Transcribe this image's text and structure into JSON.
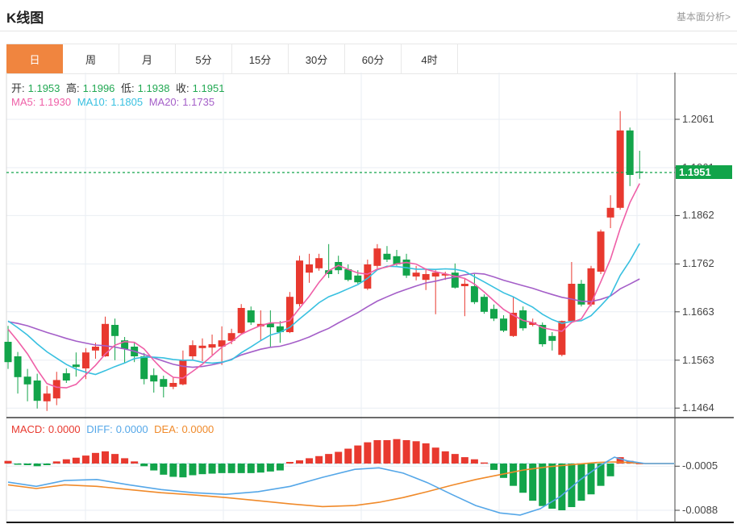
{
  "header": {
    "title": "K线图",
    "fundamental_link": "基本面分析>"
  },
  "tabs": {
    "items": [
      {
        "label": "日",
        "active": true
      },
      {
        "label": "周",
        "active": false
      },
      {
        "label": "月",
        "active": false
      },
      {
        "label": "5分",
        "active": false
      },
      {
        "label": "15分",
        "active": false
      },
      {
        "label": "30分",
        "active": false
      },
      {
        "label": "60分",
        "active": false
      },
      {
        "label": "4时",
        "active": false
      }
    ]
  },
  "legend": {
    "open_label": "开:",
    "open": "1.1953",
    "high_label": "高:",
    "high": "1.1996",
    "low_label": "低:",
    "low": "1.1938",
    "close_label": "收:",
    "close": "1.1951",
    "ma5_label": "MA5:",
    "ma5": "1.1930",
    "ma10_label": "MA10:",
    "ma10": "1.1805",
    "ma20_label": "MA20:",
    "ma20": "1.1735"
  },
  "macd_legend": {
    "macd_label": "MACD:",
    "macd": "0.0000",
    "diff_label": "DIFF:",
    "diff": "0.0000",
    "dea_label": "DEA:",
    "dea": "0.0000"
  },
  "price_tag": "1.1951",
  "colors": {
    "up": "#e8392f",
    "down": "#12a44a",
    "tab_active": "#f0853f",
    "ma5": "#ef5fa7",
    "ma10": "#38c0e0",
    "ma20": "#a45ec8",
    "diff_line": "#55a7e8",
    "dea_line": "#f08a2a",
    "grid": "#e9eef3",
    "price_line": "#12a44a",
    "zero_dash": "#9fd4ea"
  },
  "chart_data": {
    "type": "candlestick",
    "title": "K线图 (daily)",
    "period_selected": "日",
    "current_price": 1.1951,
    "ohlc_last": {
      "open": 1.1953,
      "high": 1.1996,
      "low": 1.1938,
      "close": 1.1951
    },
    "ma_last": {
      "ma5": 1.193,
      "ma10": 1.1805,
      "ma20": 1.1735
    },
    "y_ticks": [
      {
        "value": 1.2061,
        "label": "1.2061"
      },
      {
        "value": 1.1961,
        "label": "1.1961"
      },
      {
        "value": 1.1862,
        "label": "1.1862"
      },
      {
        "value": 1.1762,
        "label": "1.1762"
      },
      {
        "value": 1.1663,
        "label": "1.1663"
      },
      {
        "value": 1.1563,
        "label": "1.1563"
      },
      {
        "value": 1.1464,
        "label": "1.1464"
      }
    ],
    "macd_ticks": [
      {
        "value": -0.0005,
        "label": "-0.0005"
      },
      {
        "value": -0.0088,
        "label": "-0.0088"
      }
    ],
    "x_gridlines": [
      106,
      277,
      448,
      619,
      790
    ],
    "candles": [
      [
        1.1601,
        1.1634,
        1.1545,
        1.1559
      ],
      [
        1.1571,
        1.158,
        1.1494,
        1.1528
      ],
      [
        1.1529,
        1.1545,
        1.1478,
        1.1513
      ],
      [
        1.1521,
        1.1535,
        1.1463,
        1.1479
      ],
      [
        1.1478,
        1.151,
        1.1458,
        1.1494
      ],
      [
        1.1484,
        1.1539,
        1.147,
        1.1522
      ],
      [
        1.1536,
        1.1546,
        1.1516,
        1.1521
      ],
      [
        1.1554,
        1.1579,
        1.1529,
        1.1549
      ],
      [
        1.1546,
        1.1588,
        1.1524,
        1.1579
      ],
      [
        1.1583,
        1.1599,
        1.1566,
        1.1591
      ],
      [
        1.1571,
        1.1653,
        1.157,
        1.1638
      ],
      [
        1.1636,
        1.1649,
        1.1563,
        1.1613
      ],
      [
        1.1604,
        1.1611,
        1.1558,
        1.1586
      ],
      [
        1.1591,
        1.1601,
        1.1559,
        1.1571
      ],
      [
        1.1571,
        1.1578,
        1.1513,
        1.1524
      ],
      [
        1.1532,
        1.1546,
        1.1496,
        1.1519
      ],
      [
        1.1524,
        1.1531,
        1.1486,
        1.1508
      ],
      [
        1.1508,
        1.1528,
        1.1503,
        1.1516
      ],
      [
        1.1513,
        1.1583,
        1.1511,
        1.1563
      ],
      [
        1.1571,
        1.1604,
        1.1563,
        1.1594
      ],
      [
        1.1588,
        1.1608,
        1.1561,
        1.1593
      ],
      [
        1.1589,
        1.1616,
        1.1574,
        1.1596
      ],
      [
        1.1591,
        1.1633,
        1.1553,
        1.1604
      ],
      [
        1.1603,
        1.1628,
        1.1596,
        1.1619
      ],
      [
        1.1619,
        1.1679,
        1.1616,
        1.1671
      ],
      [
        1.1666,
        1.1674,
        1.1636,
        1.1641
      ],
      [
        1.1633,
        1.1666,
        1.1604,
        1.1638
      ],
      [
        1.1639,
        1.1666,
        1.1591,
        1.1631
      ],
      [
        1.1633,
        1.1644,
        1.1599,
        1.1621
      ],
      [
        1.1621,
        1.1704,
        1.1619,
        1.1694
      ],
      [
        1.1679,
        1.1779,
        1.1674,
        1.1769
      ],
      [
        1.1744,
        1.1783,
        1.1723,
        1.1761
      ],
      [
        1.1753,
        1.1783,
        1.1748,
        1.1774
      ],
      [
        1.1749,
        1.1803,
        1.1733,
        1.1741
      ],
      [
        1.1766,
        1.1779,
        1.1741,
        1.1749
      ],
      [
        1.1751,
        1.1761,
        1.1726,
        1.1729
      ],
      [
        1.1738,
        1.1749,
        1.1721,
        1.1724
      ],
      [
        1.1711,
        1.1771,
        1.1708,
        1.1761
      ],
      [
        1.1758,
        1.1803,
        1.1753,
        1.1794
      ],
      [
        1.1783,
        1.1799,
        1.1766,
        1.1771
      ],
      [
        1.1778,
        1.1791,
        1.1758,
        1.1761
      ],
      [
        1.1771,
        1.1783,
        1.1733,
        1.1738
      ],
      [
        1.1736,
        1.1758,
        1.1728,
        1.1744
      ],
      [
        1.1729,
        1.1753,
        1.1708,
        1.1741
      ],
      [
        1.1736,
        1.1749,
        1.1658,
        1.1744
      ],
      [
        1.1738,
        1.1746,
        1.1729,
        1.1741
      ],
      [
        1.1744,
        1.1763,
        1.1711,
        1.1713
      ],
      [
        1.1716,
        1.1733,
        1.1654,
        1.1721
      ],
      [
        1.1716,
        1.1741,
        1.1679,
        1.1683
      ],
      [
        1.1694,
        1.1699,
        1.1659,
        1.1663
      ],
      [
        1.1669,
        1.1678,
        1.1644,
        1.1649
      ],
      [
        1.1649,
        1.1656,
        1.1621,
        1.1624
      ],
      [
        1.1613,
        1.1694,
        1.1611,
        1.1661
      ],
      [
        1.1666,
        1.1674,
        1.1624,
        1.1629
      ],
      [
        1.1636,
        1.1649,
        1.1633,
        1.1641
      ],
      [
        1.1636,
        1.1641,
        1.1591,
        1.1596
      ],
      [
        1.1613,
        1.1621,
        1.1583,
        1.1603
      ],
      [
        1.1574,
        1.1645,
        1.1571,
        1.1644
      ],
      [
        1.1644,
        1.1766,
        1.1641,
        1.1721
      ],
      [
        1.1721,
        1.1729,
        1.1674,
        1.1678
      ],
      [
        1.1678,
        1.1758,
        1.1674,
        1.1753
      ],
      [
        1.1746,
        1.1833,
        1.1741,
        1.1829
      ],
      [
        1.1858,
        1.1904,
        1.1836,
        1.1878
      ],
      [
        1.1878,
        1.2078,
        1.1874,
        1.2038
      ],
      [
        1.2038,
        1.2044,
        1.1923,
        1.1946
      ],
      [
        1.1953,
        1.1996,
        1.1938,
        1.1951
      ]
    ],
    "ma_periods": [
      5,
      10,
      20
    ],
    "ma_seed": [
      1.159,
      1.16,
      1.161,
      1.162,
      1.163,
      1.164,
      1.165,
      1.1658,
      1.1664,
      1.1668,
      1.167,
      1.1668,
      1.1665,
      1.1662,
      1.1658,
      1.1654,
      1.165,
      1.1646,
      1.1642,
      1.1638
    ],
    "macd": {
      "hist": [
        0.0005,
        -0.0002,
        -0.0003,
        -0.0005,
        -0.0003,
        0.0004,
        0.0008,
        0.0011,
        0.0015,
        0.002,
        0.0023,
        0.0018,
        0.001,
        0.0004,
        -0.0005,
        -0.0013,
        -0.0021,
        -0.0025,
        -0.0026,
        -0.0022,
        -0.002,
        -0.0019,
        -0.0018,
        -0.0018,
        -0.0018,
        -0.0018,
        -0.0017,
        -0.0015,
        -0.0013,
        0.0003,
        0.0006,
        0.001,
        0.0014,
        0.0018,
        0.0022,
        0.0028,
        0.0034,
        0.004,
        0.0044,
        0.0044,
        0.0046,
        0.0044,
        0.0042,
        0.0038,
        0.003,
        0.0023,
        0.0018,
        0.0012,
        0.0008,
        0.0002,
        -0.0012,
        -0.0027,
        -0.0042,
        -0.0055,
        -0.007,
        -0.008,
        -0.0085,
        -0.0088,
        -0.0082,
        -0.007,
        -0.0058,
        -0.0042,
        -0.0024,
        0.0012,
        0.0005,
        0.0001
      ],
      "diff": [
        [
          10,
          -0.0035
        ],
        [
          45,
          -0.0043
        ],
        [
          80,
          -0.0032
        ],
        [
          120,
          -0.003
        ],
        [
          160,
          -0.004
        ],
        [
          200,
          -0.0049
        ],
        [
          240,
          -0.0055
        ],
        [
          280,
          -0.0058
        ],
        [
          320,
          -0.0053
        ],
        [
          360,
          -0.0043
        ],
        [
          400,
          -0.0026
        ],
        [
          440,
          -0.0011
        ],
        [
          470,
          -0.0008
        ],
        [
          500,
          -0.0018
        ],
        [
          530,
          -0.0036
        ],
        [
          560,
          -0.0058
        ],
        [
          590,
          -0.0079
        ],
        [
          620,
          -0.0093
        ],
        [
          645,
          -0.0097
        ],
        [
          670,
          -0.0085
        ],
        [
          695,
          -0.0062
        ],
        [
          720,
          -0.003
        ],
        [
          745,
          -0.0003
        ],
        [
          762,
          0.0012
        ],
        [
          778,
          0.0005
        ],
        [
          800,
          0.0
        ],
        [
          836,
          0.0
        ]
      ],
      "dea": [
        [
          10,
          -0.004
        ],
        [
          45,
          -0.0047
        ],
        [
          80,
          -0.004
        ],
        [
          120,
          -0.0043
        ],
        [
          160,
          -0.0049
        ],
        [
          200,
          -0.0055
        ],
        [
          240,
          -0.0059
        ],
        [
          280,
          -0.0064
        ],
        [
          320,
          -0.007
        ],
        [
          360,
          -0.0076
        ],
        [
          400,
          -0.0081
        ],
        [
          440,
          -0.0079
        ],
        [
          470,
          -0.0073
        ],
        [
          500,
          -0.0064
        ],
        [
          530,
          -0.0053
        ],
        [
          560,
          -0.0041
        ],
        [
          590,
          -0.003
        ],
        [
          620,
          -0.0021
        ],
        [
          650,
          -0.0012
        ],
        [
          680,
          -0.0006
        ],
        [
          710,
          -0.0002
        ],
        [
          740,
          0.0002
        ],
        [
          760,
          0.0003
        ],
        [
          780,
          0.0002
        ],
        [
          800,
          0.0
        ],
        [
          836,
          0.0
        ]
      ]
    }
  }
}
